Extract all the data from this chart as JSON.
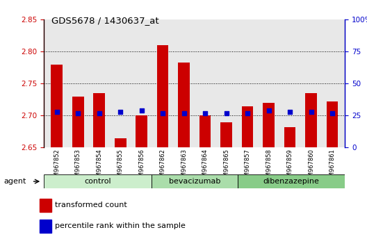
{
  "title": "GDS5678 / 1430637_at",
  "samples": [
    "GSM967852",
    "GSM967853",
    "GSM967854",
    "GSM967855",
    "GSM967856",
    "GSM967862",
    "GSM967863",
    "GSM967864",
    "GSM967865",
    "GSM967857",
    "GSM967858",
    "GSM967859",
    "GSM967860",
    "GSM967861"
  ],
  "bar_values": [
    2.78,
    2.73,
    2.735,
    2.665,
    2.7,
    2.81,
    2.783,
    2.7,
    2.69,
    2.715,
    2.72,
    2.682,
    2.735,
    2.722
  ],
  "percentile_values": [
    28,
    27,
    27,
    28,
    29,
    27,
    27,
    27,
    27,
    27,
    29,
    28,
    28,
    27
  ],
  "bar_color": "#cc0000",
  "dot_color": "#0000cc",
  "ylim_left": [
    2.65,
    2.85
  ],
  "ylim_right": [
    0,
    100
  ],
  "yticks_left": [
    2.65,
    2.7,
    2.75,
    2.8,
    2.85
  ],
  "yticks_right": [
    0,
    25,
    50,
    75,
    100
  ],
  "ytick_labels_right": [
    "0",
    "25",
    "50",
    "75",
    "100%"
  ],
  "groups": [
    {
      "label": "control",
      "start": 0,
      "end": 5
    },
    {
      "label": "bevacizumab",
      "start": 5,
      "end": 9
    },
    {
      "label": "dibenzazepine",
      "start": 9,
      "end": 14
    }
  ],
  "group_colors": [
    "#cceecc",
    "#aaddaa",
    "#88cc88"
  ],
  "legend_bar_label": "transformed count",
  "legend_dot_label": "percentile rank within the sample",
  "agent_label": "agent",
  "bar_baseline": 2.65,
  "gridline_yticks": [
    2.7,
    2.75,
    2.8
  ]
}
